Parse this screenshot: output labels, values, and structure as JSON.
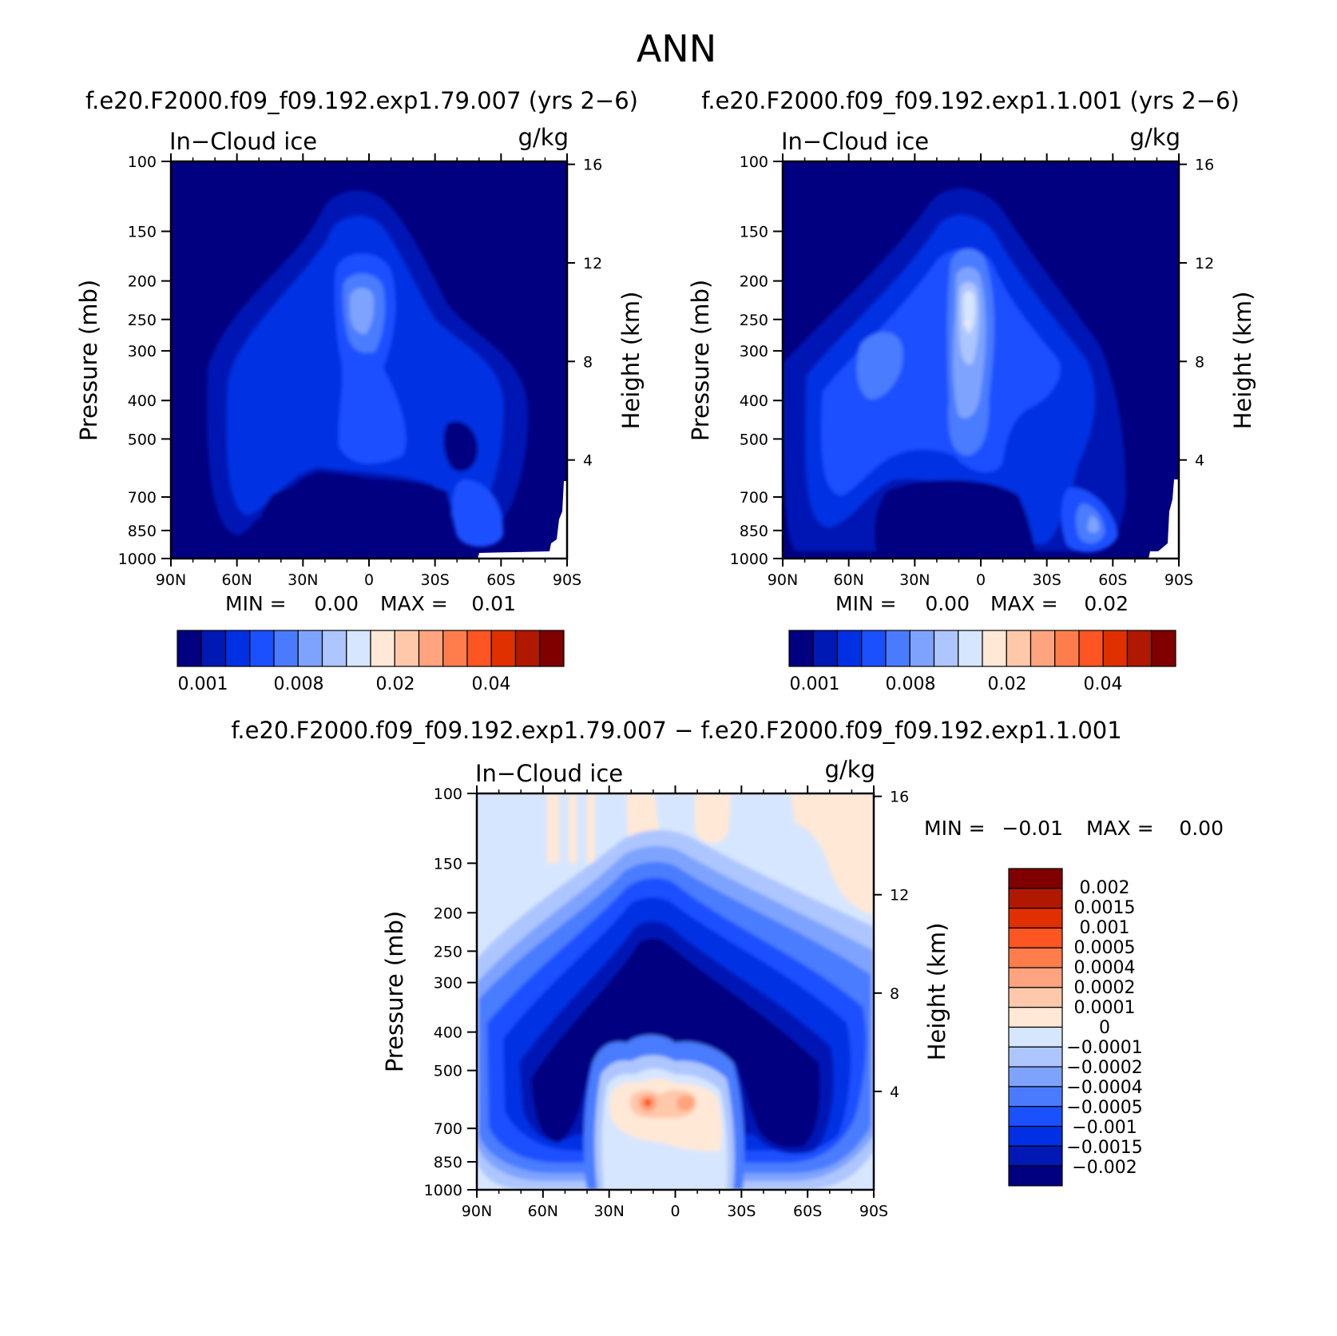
{
  "figure": {
    "title": "ANN",
    "bottom_subtitle": "f.e20.F2000.f09_f09.192.exp1.79.007 − f.e20.F2000.f09_f09.192.exp1.1.001"
  },
  "chart_data": [
    {
      "type": "heatmap",
      "subtitle": "f.e20.F2000.f09_f09.192.exp1.79.007 (yrs 2−6)",
      "variable": "In−Cloud ice",
      "units": "g/kg",
      "xlabel": "",
      "ylabel": "Pressure (mb)",
      "ylabel_right": "Height (km)",
      "x_ticks": [
        "90N",
        "60N",
        "30N",
        "0",
        "30S",
        "60S",
        "90S"
      ],
      "y_ticks": [
        "100",
        "150",
        "200",
        "250",
        "300",
        "400",
        "500",
        "700",
        "850",
        "1000"
      ],
      "y_right_ticks": [
        "16",
        "12",
        "8",
        "4"
      ],
      "xlim": [
        -90,
        90
      ],
      "ylim": [
        1000,
        100
      ],
      "min_label": "MIN =",
      "min_value": "0.00",
      "max_label": "MAX =",
      "max_value": "0.01",
      "colorbar_labels": [
        "0.001",
        "0.008",
        "0.02",
        "0.04"
      ],
      "colors": [
        "#000080",
        "#0018b4",
        "#0030e4",
        "#1a50ff",
        "#4a7bff",
        "#7ea3ff",
        "#aec6ff",
        "#d7e6ff",
        "#ffe8d6",
        "#ffc8ab",
        "#ffa47e",
        "#ff7d4d",
        "#ff5522",
        "#e03000",
        "#b01800",
        "#800000"
      ]
    },
    {
      "type": "heatmap",
      "subtitle": "f.e20.F2000.f09_f09.192.exp1.1.001 (yrs 2−6)",
      "variable": "In−Cloud ice",
      "units": "g/kg",
      "xlabel": "",
      "ylabel": "Pressure (mb)",
      "ylabel_right": "Height (km)",
      "x_ticks": [
        "90N",
        "60N",
        "30N",
        "0",
        "30S",
        "60S",
        "90S"
      ],
      "y_ticks": [
        "100",
        "150",
        "200",
        "250",
        "300",
        "400",
        "500",
        "700",
        "850",
        "1000"
      ],
      "y_right_ticks": [
        "16",
        "12",
        "8",
        "4"
      ],
      "xlim": [
        -90,
        90
      ],
      "ylim": [
        1000,
        100
      ],
      "min_label": "MIN =",
      "min_value": "0.00",
      "max_label": "MAX =",
      "max_value": "0.02",
      "colorbar_labels": [
        "0.001",
        "0.008",
        "0.02",
        "0.04"
      ],
      "colors": [
        "#000080",
        "#0018b4",
        "#0030e4",
        "#1a50ff",
        "#4a7bff",
        "#7ea3ff",
        "#aec6ff",
        "#d7e6ff",
        "#ffe8d6",
        "#ffc8ab",
        "#ffa47e",
        "#ff7d4d",
        "#ff5522",
        "#e03000",
        "#b01800",
        "#800000"
      ]
    },
    {
      "type": "heatmap",
      "subtitle": "f.e20.F2000.f09_f09.192.exp1.79.007 − f.e20.F2000.f09_f09.192.exp1.1.001",
      "variable": "In−Cloud ice",
      "units": "g/kg",
      "xlabel": "",
      "ylabel": "Pressure (mb)",
      "ylabel_right": "Height (km)",
      "x_ticks": [
        "90N",
        "60N",
        "30N",
        "0",
        "30S",
        "60S",
        "90S"
      ],
      "y_ticks": [
        "100",
        "150",
        "200",
        "250",
        "300",
        "400",
        "500",
        "700",
        "850",
        "1000"
      ],
      "y_right_ticks": [
        "16",
        "12",
        "8",
        "4"
      ],
      "xlim": [
        -90,
        90
      ],
      "ylim": [
        1000,
        100
      ],
      "min_label": "MIN =",
      "min_value": "−0.01",
      "max_label": "MAX =",
      "max_value": "0.00",
      "colorbar_labels": [
        "0.002",
        "0.0015",
        "0.001",
        "0.0005",
        "0.0004",
        "0.0002",
        "0.0001",
        "0",
        "−0.0001",
        "−0.0002",
        "−0.0004",
        "−0.0005",
        "−0.001",
        "−0.0015",
        "−0.002"
      ],
      "colors": [
        "#800000",
        "#b01800",
        "#e03000",
        "#ff5522",
        "#ff7d4d",
        "#ffa47e",
        "#ffc8ab",
        "#ffe8d6",
        "#d7e6ff",
        "#aec6ff",
        "#7ea3ff",
        "#4a7bff",
        "#1a50ff",
        "#0030e4",
        "#0018b4",
        "#000080"
      ]
    }
  ]
}
